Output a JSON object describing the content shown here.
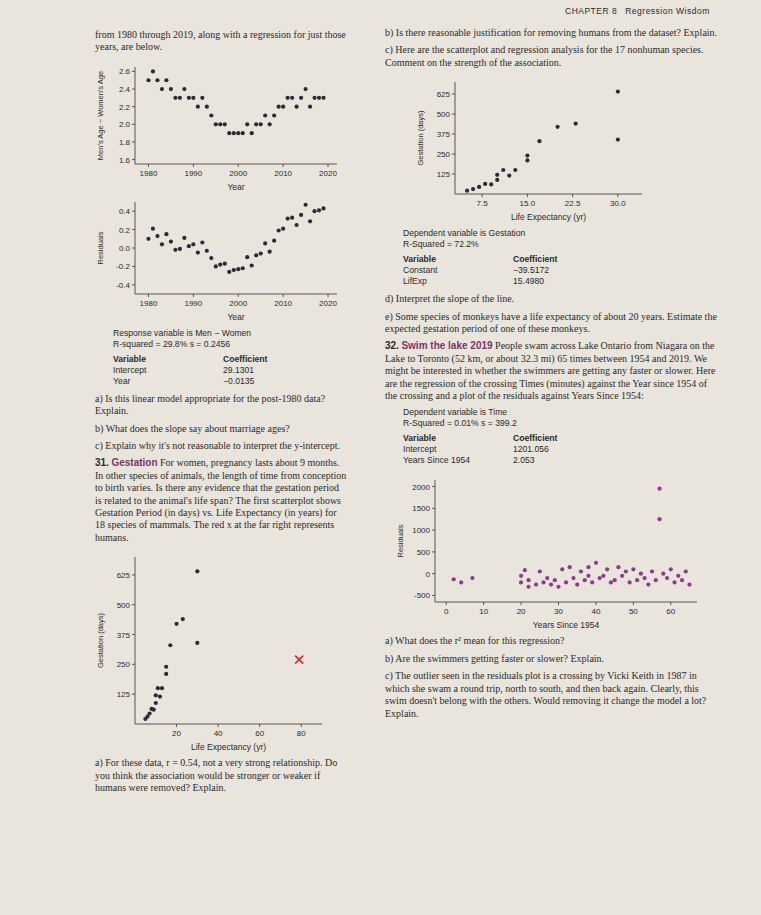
{
  "header": {
    "chapter": "CHAPTER 8",
    "title": "Regression Wisdom"
  },
  "blocks": [
    {
      "text": "from 1980 through 2019, along with a regression for just those years, are below."
    },
    {
      "text": "a) Is this linear model appropriate for the post-1980 data? Explain."
    },
    {
      "text": "b) What does the slope say about marriage ages?"
    },
    {
      "text": "c) Explain why it's not reasonable to interpret the y-intercept."
    },
    {
      "number": "31.",
      "title": "Gestation",
      "text": "For women, pregnancy lasts about 9 months. In other species of animals, the length of time from conception to birth varies. Is there any evidence that the gestation period is related to the animal's life span? The first scatterplot shows Gestation Period (in days) vs. Life Expectancy (in years) for 18 species of mammals. The red x at the far right represents humans."
    },
    {
      "text": "a) For these data, r = 0.54, not a very strong relationship. Do you think the association would be stronger or weaker if humans were removed? Explain."
    },
    {
      "text": "b) Is there reasonable justification for removing humans from the dataset? Explain."
    },
    {
      "text": "c) Here are the scatterplot and regression analysis for the 17 nonhuman species. Comment on the strength of the association."
    },
    {
      "text": "d) Interpret the slope of the line."
    },
    {
      "text": "e) Some species of monkeys have a life expectancy of about 20 years. Estimate the expected gestation period of one of these monkeys."
    },
    {
      "number": "32.",
      "title": "Swim the lake 2019",
      "text": "People swam across Lake Ontario from Niagara on the Lake to Toronto (52 km, or about 32.3 mi) 65 times between 1954 and 2019. We might be interested in whether the swimmers are getting any faster or slower. Here are the regression of the crossing Times (minutes) against the Year since 1954 of the crossing and a plot of the residuals against Years Since 1954:"
    },
    {
      "text": "a) What does the r² mean for this regression?"
    },
    {
      "text": "b) Are the swimmers getting faster or slower? Explain."
    },
    {
      "text": "c) The outlier seen in the residuals plot is a crossing by Vicki Keith in 1987 in which she swam a round trip, north to south, and then back again. Clearly, this swim doesn't belong with the others. Would removing it change the model a lot? Explain."
    }
  ],
  "regressions": [
    {
      "lines": [
        "Response variable is Men − Women",
        "R-squared = 29.8%    s = 0.2456"
      ],
      "table": {
        "header": [
          "Variable",
          "Coefficient"
        ],
        "rows": [
          [
            "Intercept",
            "29.1301"
          ],
          [
            "Year",
            "−0.0135"
          ]
        ]
      }
    },
    {
      "lines": [
        "Dependent variable is Gestation",
        "R-Squared = 72.2%"
      ],
      "table": {
        "header": [
          "Variable",
          "Coefficient"
        ],
        "rows": [
          [
            "Constant",
            "−39.5172"
          ],
          [
            "LifExp",
            "15.4980"
          ]
        ]
      }
    },
    {
      "lines": [
        "Dependent variable is Time",
        "R-Squared = 0.01%    s = 399.2"
      ],
      "table": {
        "header": [
          "Variable",
          "Coefficient"
        ],
        "rows": [
          [
            "Intercept",
            "1201.056"
          ],
          [
            "Years Since 1954",
            "2.053"
          ]
        ]
      }
    }
  ],
  "chart_data": [
    {
      "type": "scatter",
      "x_label": "Year",
      "y_label": "Men's Age − Women's Age",
      "xlim": [
        1977,
        2022
      ],
      "ylim": [
        1.55,
        2.65
      ],
      "xticks": [
        1980,
        1990,
        2000,
        2010,
        2020
      ],
      "yticks": [
        1.6,
        1.8,
        {
          "value": 2,
          "label": "2.0"
        },
        2.2,
        2.4,
        2.6
      ],
      "series": [
        {
          "color": "#2b2b38",
          "marker": "dot",
          "x": [
            1980,
            1981,
            1982,
            1983,
            1984,
            1985,
            1986,
            1987,
            1988,
            1989,
            1990,
            1991,
            1992,
            1993,
            1994,
            1995,
            1996,
            1997,
            1998,
            1999,
            2000,
            2001,
            2002,
            2003,
            2004,
            2005,
            2006,
            2007,
            2008,
            2009,
            2010,
            2011,
            2012,
            2013,
            2014,
            2015,
            2016,
            2017,
            2018,
            2019
          ],
          "values": [
            2.5,
            2.6,
            2.5,
            2.4,
            2.5,
            2.4,
            2.3,
            2.3,
            2.4,
            2.3,
            2.3,
            2.2,
            2.3,
            2.2,
            2.1,
            2.0,
            2.0,
            2.0,
            1.9,
            1.9,
            1.9,
            1.9,
            2.0,
            1.9,
            2.0,
            2.0,
            2.1,
            2.0,
            2.1,
            2.2,
            2.2,
            2.3,
            2.3,
            2.2,
            2.3,
            2.4,
            2.2,
            2.3,
            2.3,
            2.3
          ]
        }
      ]
    },
    {
      "type": "scatter",
      "x_label": "Year",
      "y_label": "Residuals",
      "xlim": [
        1977,
        2022
      ],
      "ylim": [
        -0.5,
        0.5
      ],
      "xticks": [
        1980,
        1990,
        2000,
        2010,
        2020
      ],
      "yticks": [
        -0.4,
        -0.2,
        {
          "value": 0,
          "label": "0.0"
        },
        0.2,
        0.4
      ],
      "series": [
        {
          "color": "#2b2b38",
          "marker": "dot",
          "x": [
            1980,
            1981,
            1982,
            1983,
            1984,
            1985,
            1986,
            1987,
            1988,
            1989,
            1990,
            1991,
            1992,
            1993,
            1994,
            1995,
            1996,
            1997,
            1998,
            1999,
            2000,
            2001,
            2002,
            2003,
            2004,
            2005,
            2006,
            2007,
            2008,
            2009,
            2010,
            2011,
            2012,
            2013,
            2014,
            2015,
            2016,
            2017,
            2018,
            2019
          ],
          "values": [
            0.1,
            0.21,
            0.13,
            0.04,
            0.15,
            0.07,
            -0.02,
            -0.01,
            0.11,
            0.02,
            0.04,
            -0.05,
            0.06,
            -0.03,
            -0.11,
            -0.2,
            -0.18,
            -0.17,
            -0.26,
            -0.24,
            -0.23,
            -0.22,
            -0.1,
            -0.19,
            -0.08,
            -0.06,
            0.05,
            -0.04,
            0.08,
            0.19,
            0.21,
            0.32,
            0.33,
            0.25,
            0.36,
            0.47,
            0.29,
            0.4,
            0.41,
            0.43
          ]
        }
      ]
    },
    {
      "type": "scatter",
      "x_label": "Life Expectancy (yr)",
      "y_label": "Gestation (days)",
      "xlim": [
        0,
        90
      ],
      "ylim": [
        0,
        700
      ],
      "xticks": [
        20,
        40,
        60,
        80
      ],
      "yticks": [
        125,
        250,
        375,
        500,
        625
      ],
      "series": [
        {
          "color": "#2b2b38",
          "marker": "dot",
          "x": [
            5,
            6,
            7,
            8,
            9,
            10,
            10,
            11,
            12,
            13,
            15,
            15,
            17,
            20,
            23,
            30,
            30
          ],
          "values": [
            21,
            31,
            44,
            63,
            60,
            88,
            120,
            150,
            115,
            150,
            210,
            240,
            330,
            420,
            440,
            340,
            640
          ]
        },
        {
          "color": "#d8262b",
          "marker": "x",
          "x": [
            79
          ],
          "values": [
            270
          ]
        }
      ]
    },
    {
      "type": "scatter",
      "x_label": "Life Expectancy (yr)",
      "y_label": "Gestation (days)",
      "xlim": [
        3,
        34
      ],
      "ylim": [
        0,
        700
      ],
      "xticks": [
        7.5,
        {
          "value": 15,
          "label": "15.0"
        },
        22.5,
        {
          "value": 30,
          "label": "30.0"
        }
      ],
      "yticks": [
        125,
        250,
        375,
        500,
        625
      ],
      "series": [
        {
          "color": "#2b2b38",
          "marker": "dot",
          "x": [
            5,
            6,
            7,
            8,
            9,
            10,
            10,
            11,
            12,
            13,
            15,
            15,
            17,
            20,
            23,
            30,
            30
          ],
          "values": [
            21,
            31,
            44,
            63,
            60,
            88,
            120,
            150,
            115,
            150,
            210,
            240,
            330,
            420,
            440,
            340,
            640
          ]
        }
      ]
    },
    {
      "type": "scatter",
      "x_label": "Years Since 1954",
      "y_label": "Residuals",
      "xlim": [
        -3,
        67
      ],
      "ylim": [
        -650,
        2150
      ],
      "xticks": [
        0,
        10,
        20,
        30,
        40,
        50,
        60
      ],
      "yticks": [
        -500,
        0,
        500,
        1000,
        1500,
        2000
      ],
      "series": [
        {
          "color": "#8e3b8e",
          "marker": "dot",
          "x": [
            2,
            4,
            7,
            20,
            20,
            21,
            22,
            22,
            24,
            25,
            26,
            27,
            28,
            29,
            30,
            31,
            32,
            33,
            34,
            35,
            36,
            37,
            38,
            38,
            39,
            40,
            41,
            42,
            43,
            44,
            45,
            46,
            47,
            48,
            49,
            50,
            51,
            52,
            53,
            54,
            55,
            56,
            57,
            57,
            58,
            59,
            60,
            61,
            62,
            63,
            64,
            65
          ],
          "values": [
            -130,
            -200,
            -100,
            -50,
            -200,
            80,
            -300,
            -150,
            -250,
            50,
            -200,
            -100,
            -250,
            -150,
            -300,
            100,
            -200,
            150,
            -100,
            -250,
            50,
            -150,
            150,
            -50,
            -200,
            250,
            -100,
            -50,
            100,
            -200,
            -150,
            150,
            -50,
            50,
            -200,
            100,
            -150,
            0,
            -100,
            -250,
            50,
            -150,
            1950,
            1250,
            0,
            -100,
            100,
            -200,
            -50,
            -150,
            50,
            -250
          ]
        }
      ]
    }
  ]
}
